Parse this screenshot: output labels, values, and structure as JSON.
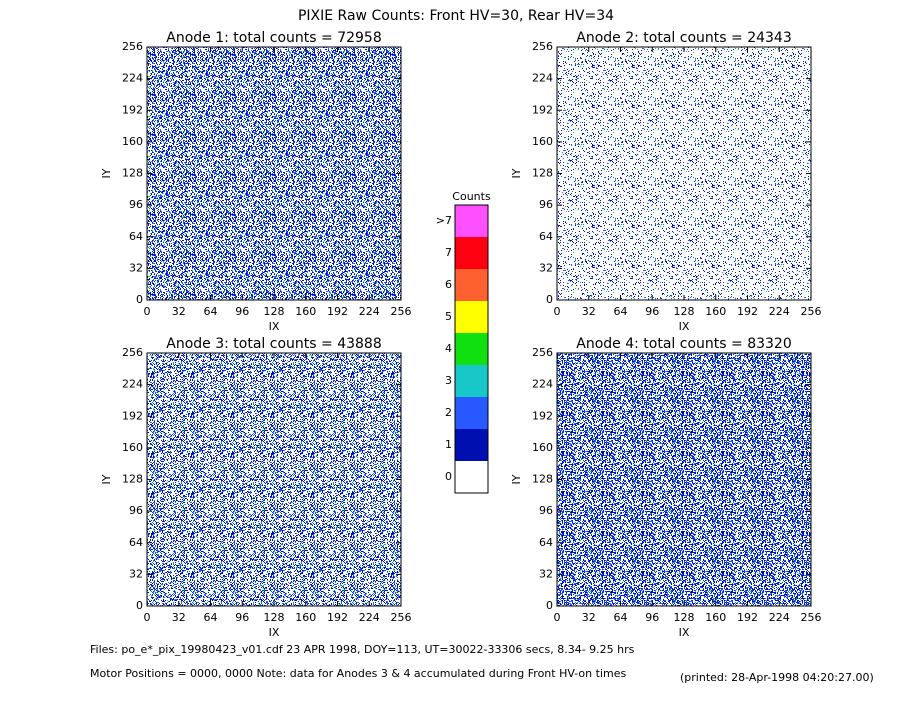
{
  "title": "PIXIE Raw Counts:  Front HV=30, Rear HV=34",
  "chart_data": [
    {
      "type": "heatmap",
      "title": "Anode 1: total counts = 72958",
      "xlabel": "IX",
      "ylabel": "IY",
      "xlim": [
        0,
        256
      ],
      "ylim": [
        0,
        256
      ],
      "xticks": [
        0,
        32,
        64,
        96,
        128,
        160,
        192,
        224,
        256
      ],
      "yticks": [
        0,
        32,
        64,
        96,
        128,
        160,
        192,
        224,
        256
      ]
    },
    {
      "type": "heatmap",
      "title": "Anode 2: total counts = 24343",
      "xlabel": "IX",
      "ylabel": "IY",
      "xlim": [
        0,
        256
      ],
      "ylim": [
        0,
        256
      ],
      "xticks": [
        0,
        32,
        64,
        96,
        128,
        160,
        192,
        224,
        256
      ],
      "yticks": [
        0,
        32,
        64,
        96,
        128,
        160,
        192,
        224,
        256
      ]
    },
    {
      "type": "heatmap",
      "title": "Anode 3: total counts = 43888",
      "xlabel": "IX",
      "ylabel": "IY",
      "xlim": [
        0,
        256
      ],
      "ylim": [
        0,
        256
      ],
      "xticks": [
        0,
        32,
        64,
        96,
        128,
        160,
        192,
        224,
        256
      ],
      "yticks": [
        0,
        32,
        64,
        96,
        128,
        160,
        192,
        224,
        256
      ]
    },
    {
      "type": "heatmap",
      "title": "Anode 4: total counts = 83320",
      "xlabel": "IX",
      "ylabel": "IY",
      "xlim": [
        0,
        256
      ],
      "ylim": [
        0,
        256
      ],
      "xticks": [
        0,
        32,
        64,
        96,
        128,
        160,
        192,
        224,
        256
      ],
      "yticks": [
        0,
        32,
        64,
        96,
        128,
        160,
        192,
        224,
        256
      ]
    }
  ],
  "colorbar": {
    "title": "Counts",
    "categories": [
      "0",
      "1",
      "2",
      "3",
      "4",
      "5",
      "6",
      "7",
      ">7"
    ],
    "colors": [
      "#ffffff",
      "#0010b0",
      "#2858ff",
      "#18c8c8",
      "#10e010",
      "#ffff00",
      "#ff6030",
      "#ff0010",
      "#ff50ff"
    ]
  },
  "footer": {
    "files": "Files: po_e*_pix_19980423_v01.cdf    23 APR 1998, DOY=113, UT=30022-33306 secs,  8.34- 9.25 hrs",
    "motor": "Motor Positions = 0000, 0000    Note: data for Anodes 3 & 4 accumulated during Front HV-on times",
    "printed": "(printed: 28-Apr-1998 04:20:27.00)"
  }
}
